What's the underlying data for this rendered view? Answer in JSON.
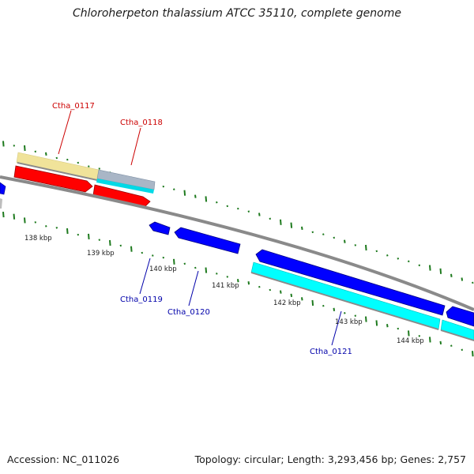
{
  "title": "Chloroherpeton thalassium ATCC 35110, complete genome",
  "footer": {
    "accession": "Accession: NC_011026",
    "topology": "Topology: circular; Length: 3,293,456 bp; Genes: 2,757"
  },
  "colors": {
    "forward_gene": "#ff0000",
    "reverse_gene": "#0000ff",
    "forward_label": "#cc0000",
    "reverse_label": "#0000aa",
    "cds_forward": "#f0e39a",
    "cds_reverse": "#00ffff",
    "backbone": "#888888",
    "gc_ticks": "#1e7a1e"
  },
  "genes": [
    {
      "id": "Ctha_0117",
      "strand": "forward"
    },
    {
      "id": "Ctha_0118",
      "strand": "forward"
    },
    {
      "id": "Ctha_0119",
      "strand": "reverse"
    },
    {
      "id": "Ctha_0120",
      "strand": "reverse"
    },
    {
      "id": "Ctha_0121",
      "strand": "reverse"
    }
  ],
  "scale_labels": [
    "138 kbp",
    "139 kbp",
    "140 kbp",
    "141 kbp",
    "142 kbp",
    "143 kbp",
    "144 kbp"
  ]
}
